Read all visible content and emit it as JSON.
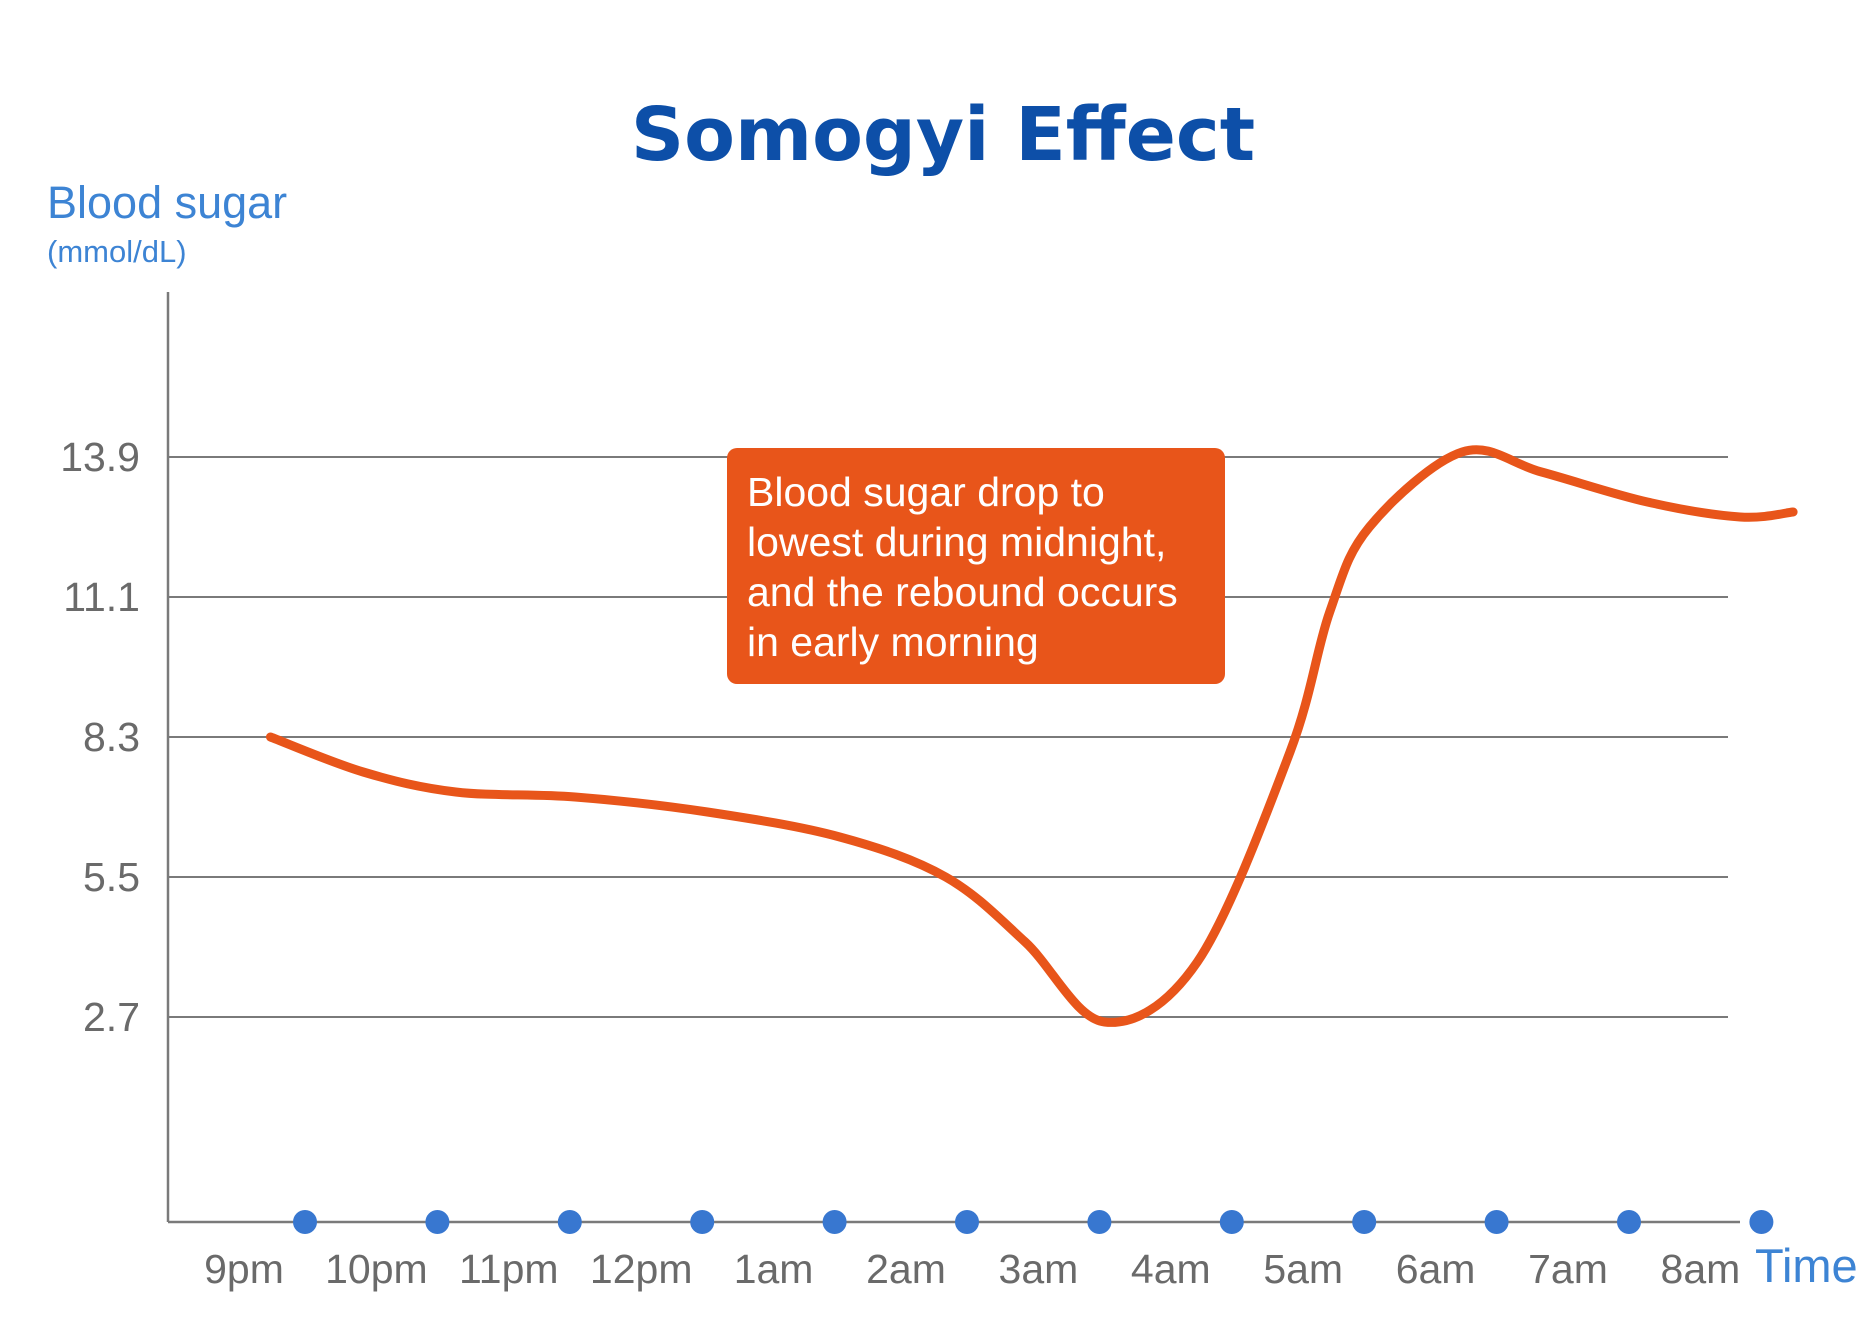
{
  "chart_data": {
    "type": "line",
    "title": "Somogyi Effect",
    "ylabel": "Blood sugar",
    "yunit": "(mmol/dL)",
    "xlabel": "Time",
    "y_ticks": [
      2.7,
      5.5,
      8.3,
      11.1,
      13.9
    ],
    "ylim": [
      -1.4,
      17.2
    ],
    "grid": "horizontal",
    "categories": [
      "9pm",
      "10pm",
      "11pm",
      "12pm",
      "1am",
      "2am",
      "3am",
      "4am",
      "5am",
      "6am",
      "7am",
      "8am",
      ""
    ],
    "x": [
      0.2,
      0.9,
      1.6,
      2.5,
      3.5,
      4.5,
      5.3,
      5.9,
      6.5,
      7.2,
      7.9,
      8.2,
      8.5,
      9.2,
      9.8,
      10.6,
      11.3,
      11.7
    ],
    "series": [
      {
        "values": [
          8.3,
          7.6,
          7.2,
          7.1,
          6.8,
          6.3,
          5.5,
          4.2,
          2.6,
          3.8,
          8.0,
          10.8,
          12.5,
          14.0,
          13.6,
          13.0,
          12.7,
          12.8
        ],
        "color": "#e8551a"
      }
    ],
    "annotation": {
      "lines": [
        "Blood sugar drop to",
        "lowest during midnight,",
        "and the rebound occurs",
        "in early morning"
      ],
      "background": "#e8551a"
    },
    "colors": {
      "title": "#0d4fa8",
      "axis_label": "#3d84d4",
      "tick_marker": "#3877d0",
      "grid": "#7a7a7a"
    }
  }
}
